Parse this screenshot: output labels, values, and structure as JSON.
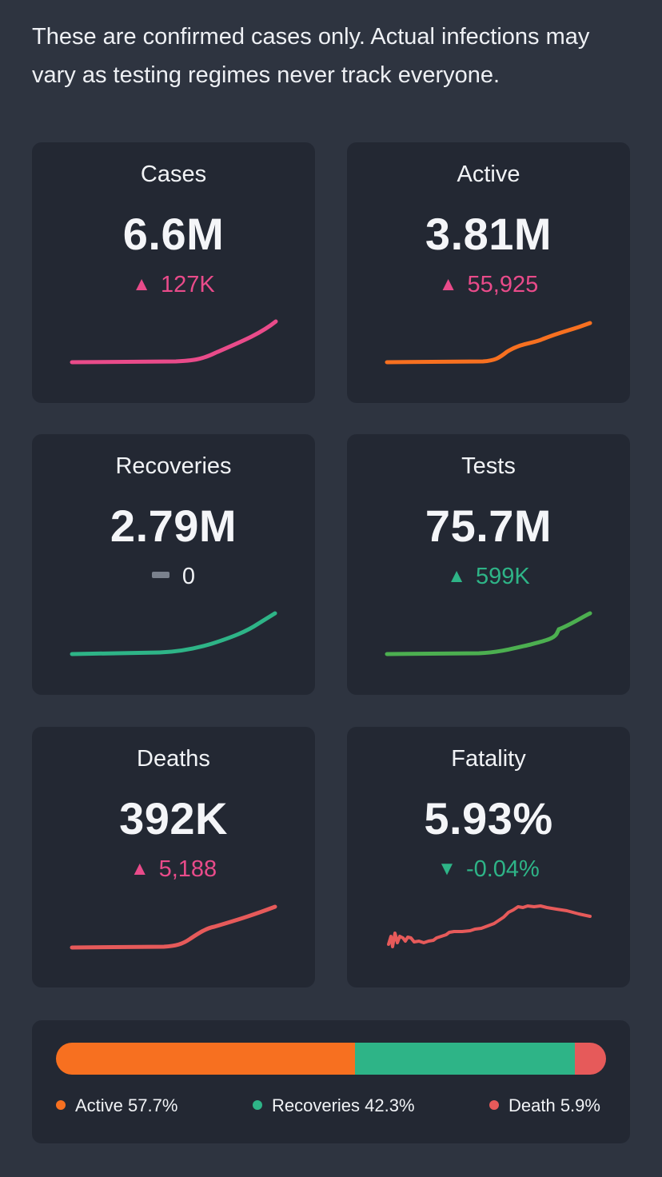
{
  "disclaimer": "These are confirmed cases only. Actual infections may vary as testing regimes never track everyone.",
  "colors": {
    "background": "#2e3440",
    "card": "#232833",
    "pink": "#e94b8a",
    "orange": "#f77020",
    "teal": "#2eb487",
    "green": "#4caf50",
    "red": "#e65a5a",
    "gray": "#7a818d"
  },
  "cards": [
    {
      "label": "Cases",
      "value": "6.6M",
      "delta": "127K",
      "trend": "up"
    },
    {
      "label": "Active",
      "value": "3.81M",
      "delta": "55,925",
      "trend": "up"
    },
    {
      "label": "Recoveries",
      "value": "2.79M",
      "delta": "0",
      "trend": "flat"
    },
    {
      "label": "Tests",
      "value": "75.7M",
      "delta": "599K",
      "trend": "up"
    },
    {
      "label": "Deaths",
      "value": "392K",
      "delta": "5,188",
      "trend": "up"
    },
    {
      "label": "Fatality",
      "value": "5.93%",
      "delta": "-0.04%",
      "trend": "down"
    }
  ],
  "icons": {
    "up": "triangle-up-icon",
    "down": "triangle-down-icon",
    "flat": "dash-icon"
  },
  "breakdown": {
    "segments": [
      {
        "label": "Active 57.7%",
        "value": 57.7,
        "color": "#f77020"
      },
      {
        "label": "Recoveries 42.3%",
        "value": 42.3,
        "color": "#2eb487"
      },
      {
        "label": "Death 5.9%",
        "value": 5.9,
        "color": "#e65a5a"
      }
    ]
  }
}
